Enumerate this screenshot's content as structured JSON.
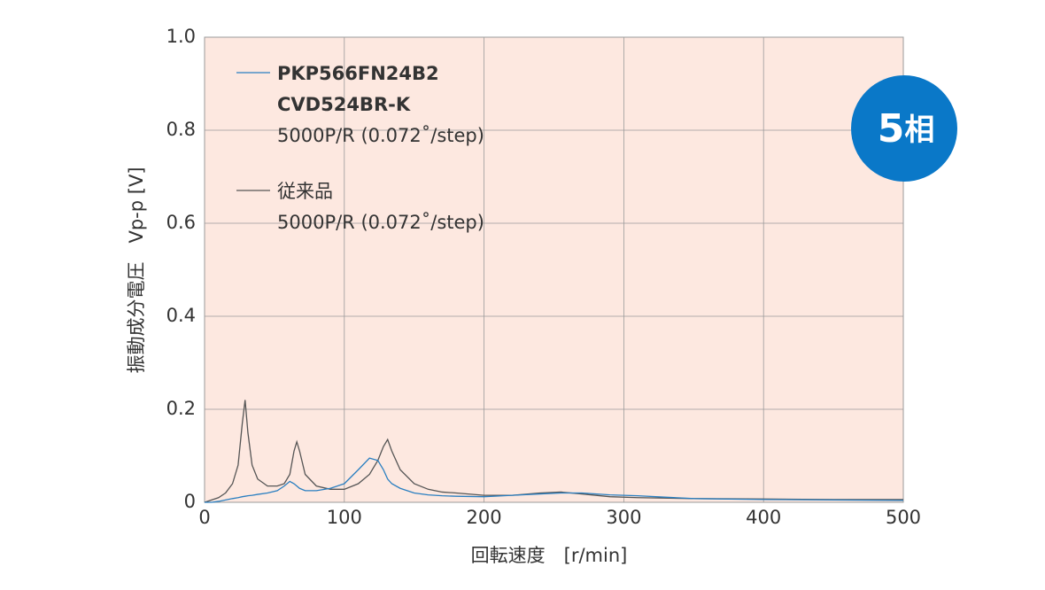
{
  "chart_data": {
    "type": "line",
    "x_label": "回転速度　[r/min]",
    "y_label": "振動成分電圧　Vp-p [V]",
    "badge": {
      "number": "5",
      "text": "相"
    },
    "x": [
      0,
      5,
      10,
      15,
      20,
      24,
      27,
      29,
      31,
      34,
      38,
      45,
      52,
      57,
      61,
      64,
      66,
      68,
      72,
      80,
      90,
      100,
      110,
      118,
      124,
      128,
      131,
      134,
      140,
      150,
      160,
      170,
      180,
      200,
      220,
      240,
      255,
      270,
      290,
      310,
      350,
      400,
      450,
      500
    ],
    "series": [
      {
        "name": "PKP566FN24B2",
        "name_line2": "CVD524BR-K",
        "note": "5000P/R (0.072˚/step)",
        "color": "#2a7fc1",
        "values": [
          0,
          0,
          0.002,
          0.005,
          0.008,
          0.01,
          0.012,
          0.013,
          0.014,
          0.015,
          0.017,
          0.02,
          0.025,
          0.035,
          0.045,
          0.04,
          0.035,
          0.03,
          0.025,
          0.025,
          0.03,
          0.04,
          0.07,
          0.095,
          0.09,
          0.07,
          0.05,
          0.04,
          0.03,
          0.02,
          0.016,
          0.014,
          0.013,
          0.012,
          0.015,
          0.018,
          0.02,
          0.02,
          0.016,
          0.014,
          0.008,
          0.006,
          0.005,
          0.004
        ]
      },
      {
        "name": "従来品",
        "note": "5000P/R (0.072˚/step)",
        "color": "#555555",
        "values": [
          0,
          0.005,
          0.01,
          0.02,
          0.04,
          0.08,
          0.17,
          0.22,
          0.15,
          0.08,
          0.05,
          0.035,
          0.035,
          0.04,
          0.06,
          0.11,
          0.13,
          0.11,
          0.06,
          0.035,
          0.028,
          0.028,
          0.04,
          0.06,
          0.09,
          0.12,
          0.135,
          0.11,
          0.07,
          0.04,
          0.028,
          0.022,
          0.02,
          0.015,
          0.015,
          0.02,
          0.022,
          0.018,
          0.012,
          0.01,
          0.008,
          0.007,
          0.006,
          0.006
        ]
      }
    ],
    "xlim": [
      0,
      500
    ],
    "xticks": [
      0,
      100,
      200,
      300,
      400,
      500
    ],
    "ylim": [
      0,
      1
    ],
    "yticks": [
      0,
      0.2,
      0.4,
      0.6,
      0.8,
      {
        "value": 1,
        "label": "1.0"
      }
    ],
    "grid": true,
    "background": "#fde8e0",
    "badge_color": "#0a78c8"
  }
}
